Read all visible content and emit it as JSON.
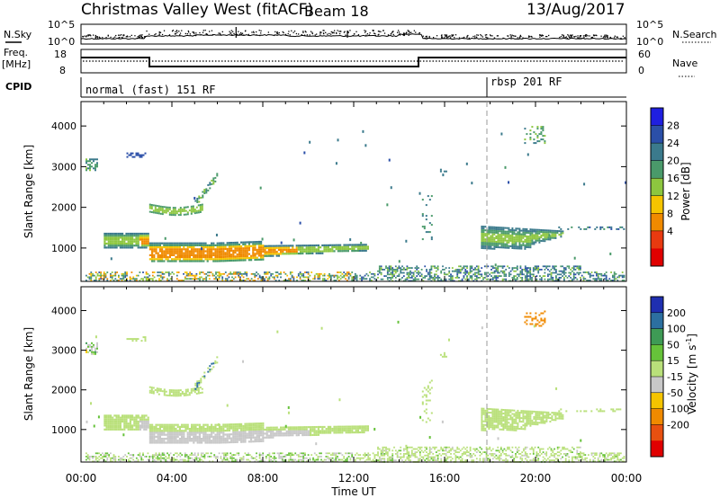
{
  "header": {
    "station": "Christmas Valley West (fitACF)",
    "beam": "Beam 18",
    "date": "13/Aug/2017"
  },
  "strips": {
    "nsky_label": "N.Sky",
    "nsky_ticks": [
      "10^5",
      "10^0"
    ],
    "nsearch_label": "N.Search",
    "nsearch_ticks": [
      "10^5",
      "10^0"
    ],
    "freq_label": "Freq.",
    "freq_unit": "[MHz]",
    "freq_ticks": [
      "18",
      "8"
    ],
    "nave_label": "Nave",
    "nave_ticks": [
      "60",
      "0"
    ],
    "cpid_label": "CPID",
    "cpid_modes": [
      {
        "label": "normal (fast) 151 RF",
        "start_hour": 0
      },
      {
        "label": "rbsp 201 RF",
        "start_hour": 18
      }
    ]
  },
  "chart_data": [
    {
      "type": "heatmap",
      "name": "power",
      "ylabel": "Slant Range [km]",
      "xlabel": "Time UT",
      "x_ticks": [
        "00:00",
        "04:00",
        "08:00",
        "12:00",
        "16:00",
        "20:00",
        "00:00"
      ],
      "y_ticks": [
        1000,
        2000,
        3000,
        4000
      ],
      "ylim": [
        180,
        4600
      ],
      "xlim_hours": [
        0,
        24
      ],
      "colorbar_label": "Power [dB]",
      "colorbar_ticks": [
        4,
        8,
        12,
        16,
        20,
        24,
        28
      ],
      "colorbar_colors": [
        "#1f1fe0",
        "#2b4fa8",
        "#3b7a8c",
        "#4a9a6a",
        "#8dc63f",
        "#f5c400",
        "#f08a00",
        "#e83a10",
        "#e00000"
      ]
    },
    {
      "type": "heatmap",
      "name": "velocity",
      "ylabel": "Slant Range [km]",
      "xlabel": "Time UT",
      "x_ticks": [
        "00:00",
        "04:00",
        "08:00",
        "12:00",
        "16:00",
        "20:00",
        "00:00"
      ],
      "y_ticks": [
        1000,
        2000,
        3000,
        4000
      ],
      "ylim": [
        180,
        4600
      ],
      "xlim_hours": [
        0,
        24
      ],
      "colorbar_label": "Velocity [m s",
      "colorbar_label_sup": "-1",
      "colorbar_ticks": [
        200,
        100,
        50,
        15,
        -15,
        -50,
        -100,
        -200
      ],
      "colorbar_colors": [
        "#1f2fb0",
        "#2c6fa0",
        "#3e9a55",
        "#66c23a",
        "#b9e07a",
        "#c8c8c8",
        "#f5c400",
        "#f08a00",
        "#e85010",
        "#e00000"
      ]
    }
  ]
}
